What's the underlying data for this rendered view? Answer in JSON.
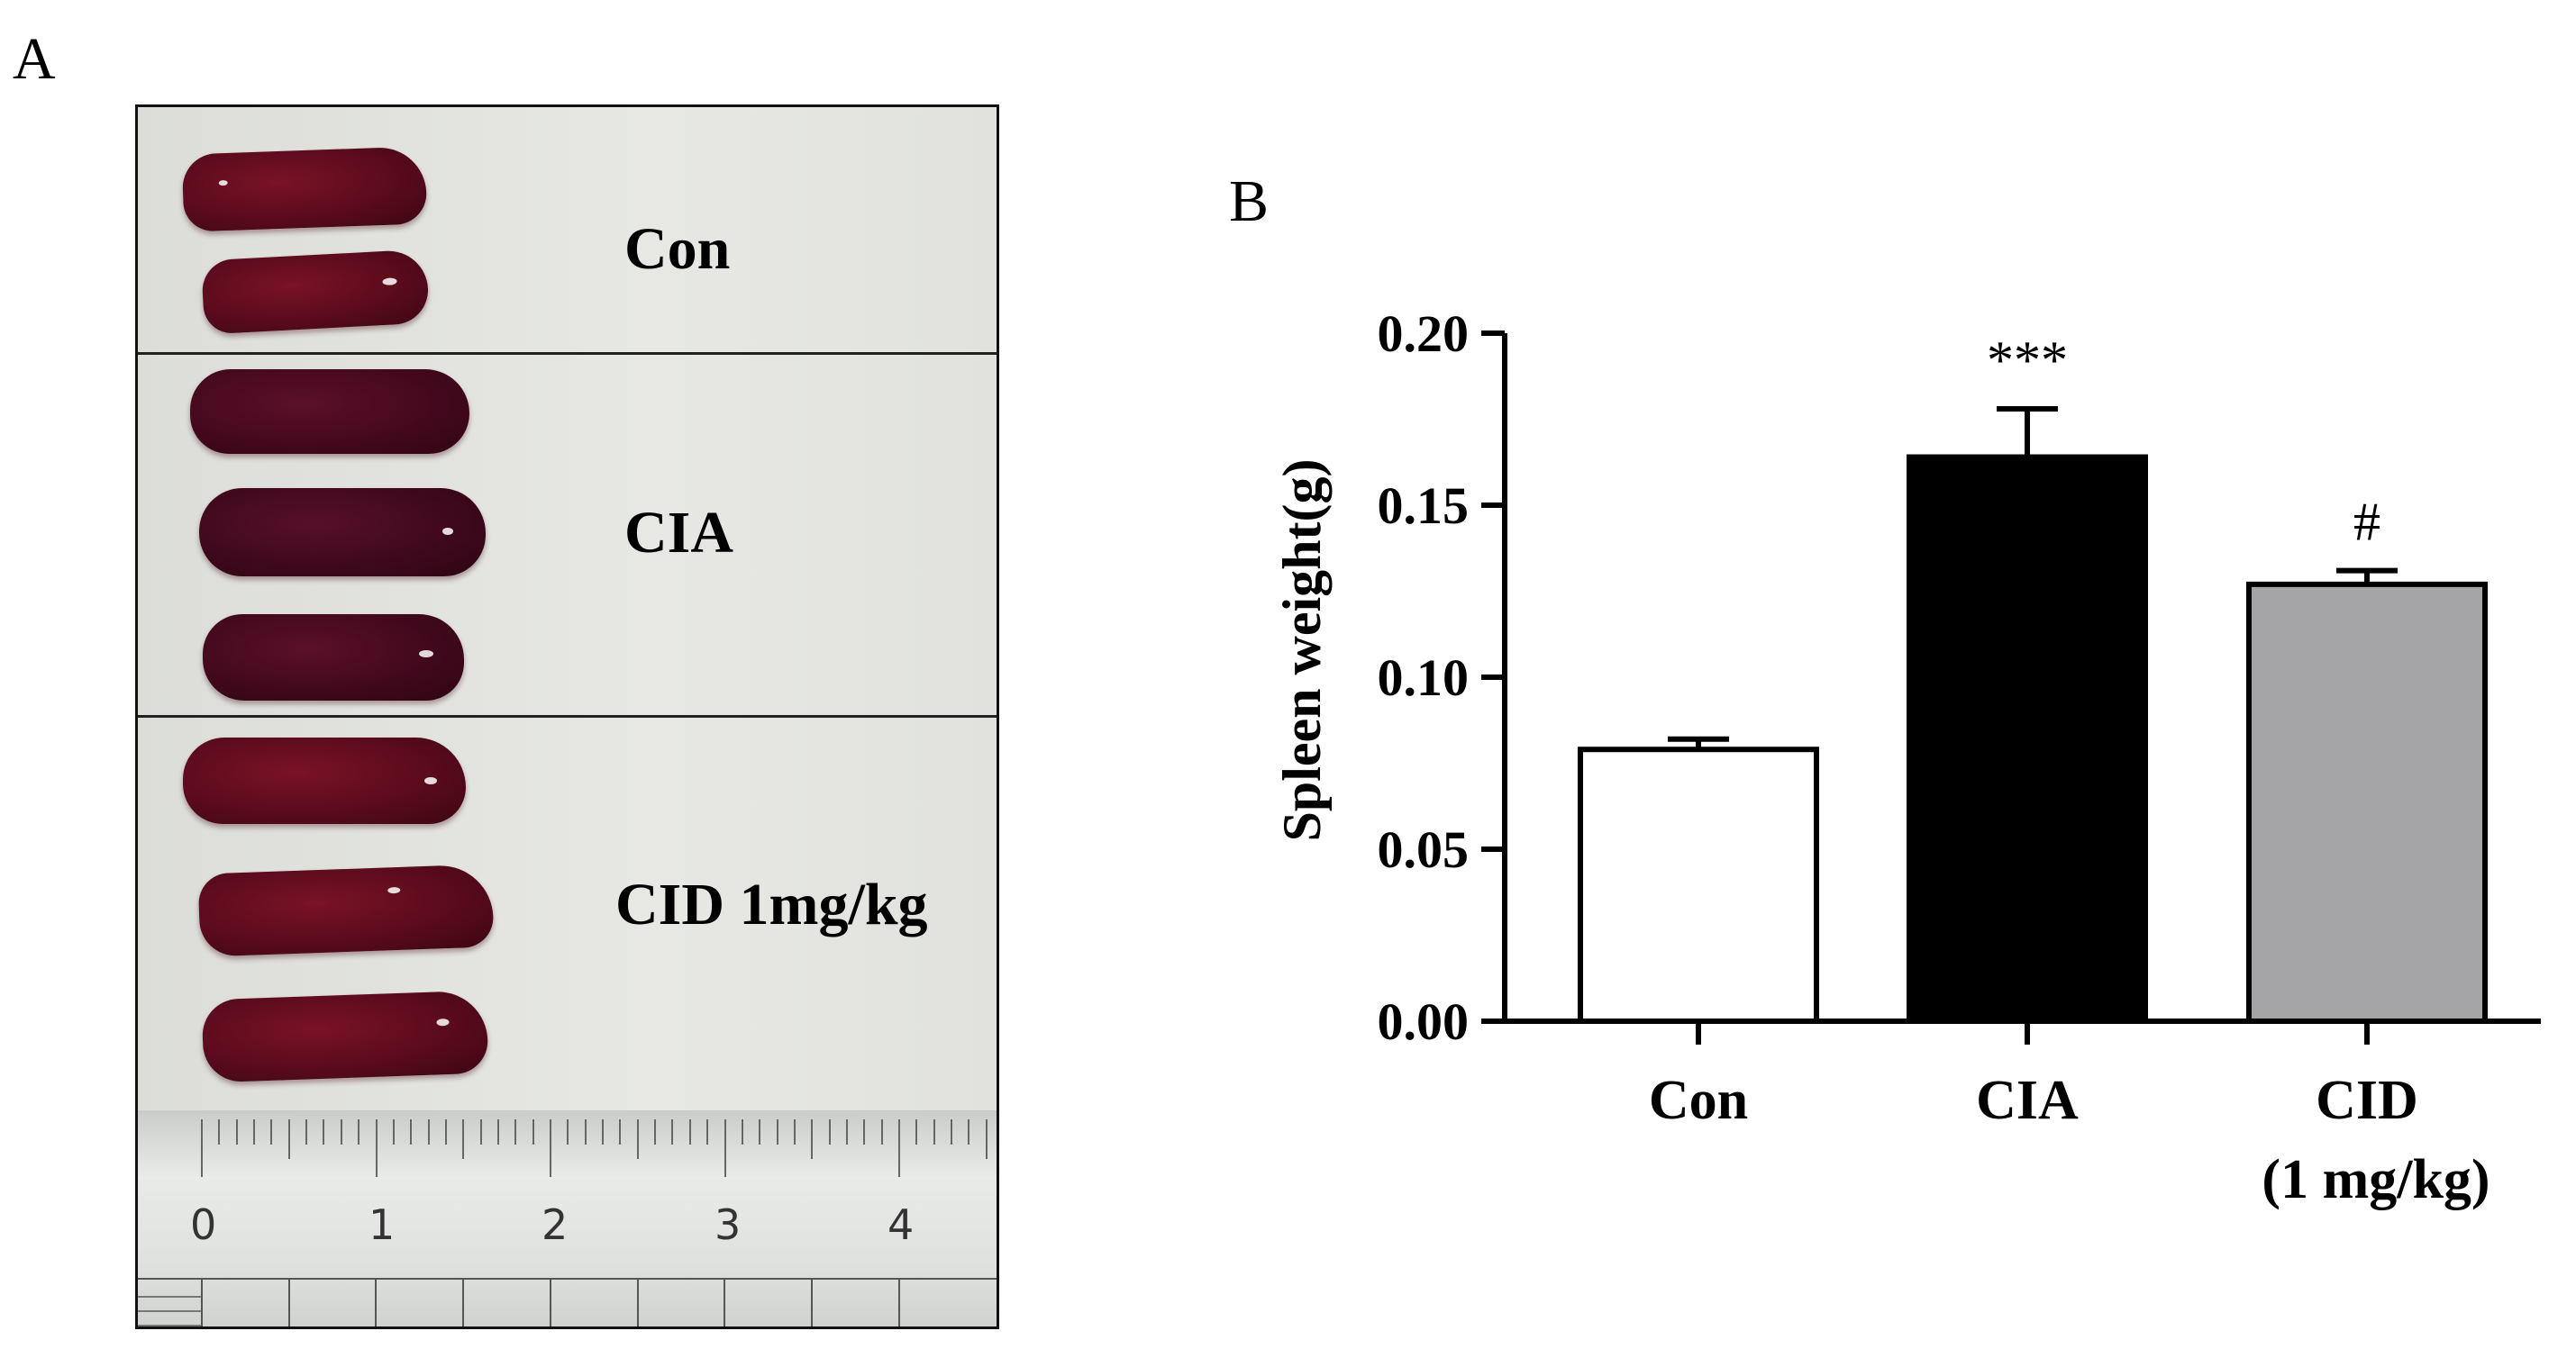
{
  "panel_a": {
    "letter": "A",
    "labels": [
      "Con",
      "CIA",
      "CID 1mg/kg"
    ],
    "ruler_numbers": [
      "0",
      "1",
      "2",
      "3",
      "4"
    ]
  },
  "panel_b": {
    "letter": "B"
  },
  "colors": {
    "con_bar": "#ffffff",
    "cia_bar": "#000000",
    "cid_bar": "#a5a5a7",
    "spleen": "#5a0b1c"
  },
  "chart_data": {
    "type": "bar",
    "title": "",
    "xlabel": "",
    "ylabel": "Spleen weight(g)",
    "ylim": [
      0.0,
      0.2
    ],
    "yticks": [
      "0.00",
      "0.05",
      "0.10",
      "0.15",
      "0.20"
    ],
    "categories": [
      {
        "line1": "Con",
        "line2": ""
      },
      {
        "line1": "CIA",
        "line2": ""
      },
      {
        "line1": "CID",
        "line2": "(1 mg/kg)"
      }
    ],
    "values": [
      0.079,
      0.164,
      0.127
    ],
    "errors": [
      0.003,
      0.014,
      0.004
    ],
    "annotations": [
      "",
      "***",
      "#"
    ],
    "grid": false
  }
}
